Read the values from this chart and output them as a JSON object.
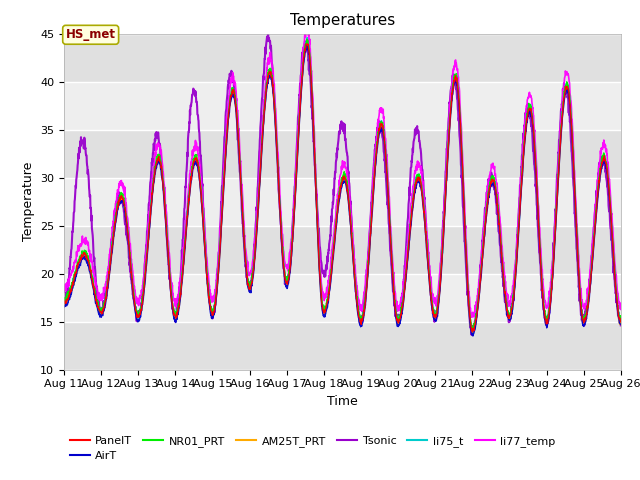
{
  "title": "Temperatures",
  "xlabel": "Time",
  "ylabel": "Temperature",
  "ylim": [
    10,
    45
  ],
  "xlim": [
    0,
    15
  ],
  "x_tick_labels": [
    "Aug 11",
    "Aug 12",
    "Aug 13",
    "Aug 14",
    "Aug 15",
    "Aug 16",
    "Aug 17",
    "Aug 18",
    "Aug 19",
    "Aug 20",
    "Aug 21",
    "Aug 22",
    "Aug 23",
    "Aug 24",
    "Aug 25",
    "Aug 26"
  ],
  "y_ticks": [
    10,
    15,
    20,
    25,
    30,
    35,
    40,
    45
  ],
  "series_colors": {
    "PanelT": "#FF0000",
    "AirT": "#0000CC",
    "NR01_PRT": "#00EE00",
    "AM25T_PRT": "#FFAA00",
    "Tsonic": "#9900CC",
    "li75_t": "#00CCCC",
    "li77_temp": "#FF00FF"
  },
  "annotation_text": "HS_met",
  "plot_bg_color": "#EBEBEB",
  "title_fontsize": 11,
  "axis_fontsize": 9,
  "tick_fontsize": 8
}
